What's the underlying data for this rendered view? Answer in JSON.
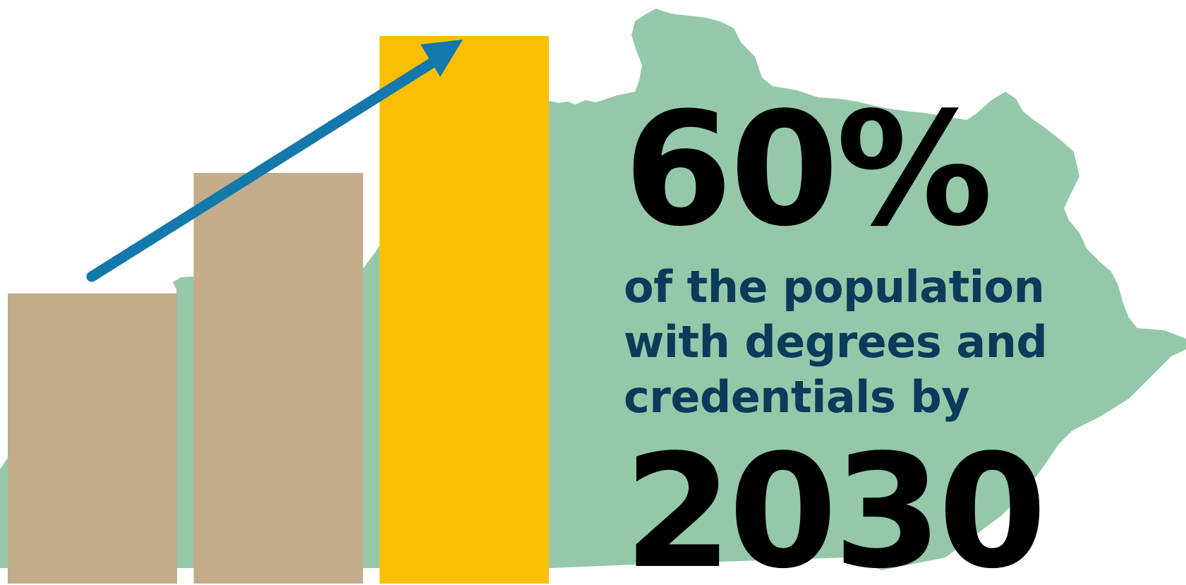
{
  "colors": {
    "map_fill": "#94c8a9",
    "bar_past": "#c2ac8b",
    "bar_goal": "#fbbf00",
    "arrow": "#1378ab",
    "subtitle_text": "#0c3a5a",
    "headline_text": "#000000"
  },
  "graphic": {
    "map": "kentucky-state-outline",
    "bar_levels": [
      0.53,
      0.75,
      1.0
    ],
    "arrow_icon": "arrow-up-right-icon"
  },
  "headline": {
    "percent": "60%",
    "subtitle_lines": [
      "of the population",
      "with degrees and",
      "credentials by"
    ],
    "year": "2030"
  }
}
